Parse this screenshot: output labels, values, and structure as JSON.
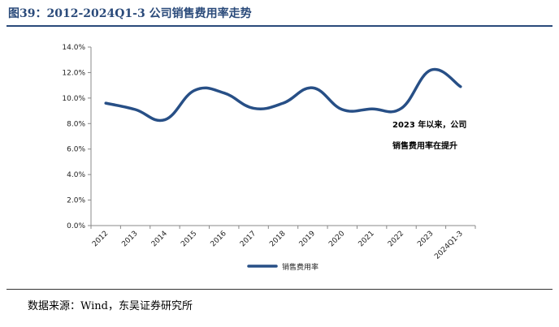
{
  "title": "图39：2012-2024Q1-3 公司销售费用率走势",
  "source": "数据来源：Wind，东吴证券研究所",
  "colors": {
    "line": "#274f86",
    "title": "#2a4a7a"
  },
  "chart_data": {
    "type": "line",
    "categories": [
      "2012",
      "2013",
      "2014",
      "2015",
      "2016",
      "2017",
      "2018",
      "2019",
      "2020",
      "2021",
      "2022",
      "2023",
      "2024Q1-3"
    ],
    "series": [
      {
        "name": "销售费用率",
        "values": [
          9.6,
          9.1,
          8.3,
          10.6,
          10.4,
          9.2,
          9.6,
          10.8,
          9.1,
          9.15,
          9.2,
          12.2,
          10.9
        ]
      }
    ],
    "ylim": [
      0,
      14
    ],
    "yticks": [
      "0.0%",
      "2.0%",
      "4.0%",
      "6.0%",
      "8.0%",
      "10.0%",
      "12.0%",
      "14.0%"
    ],
    "annotation": [
      "2023 年以来，公司",
      "销售费用率在提升"
    ],
    "grid": false,
    "legend": "bottom"
  }
}
